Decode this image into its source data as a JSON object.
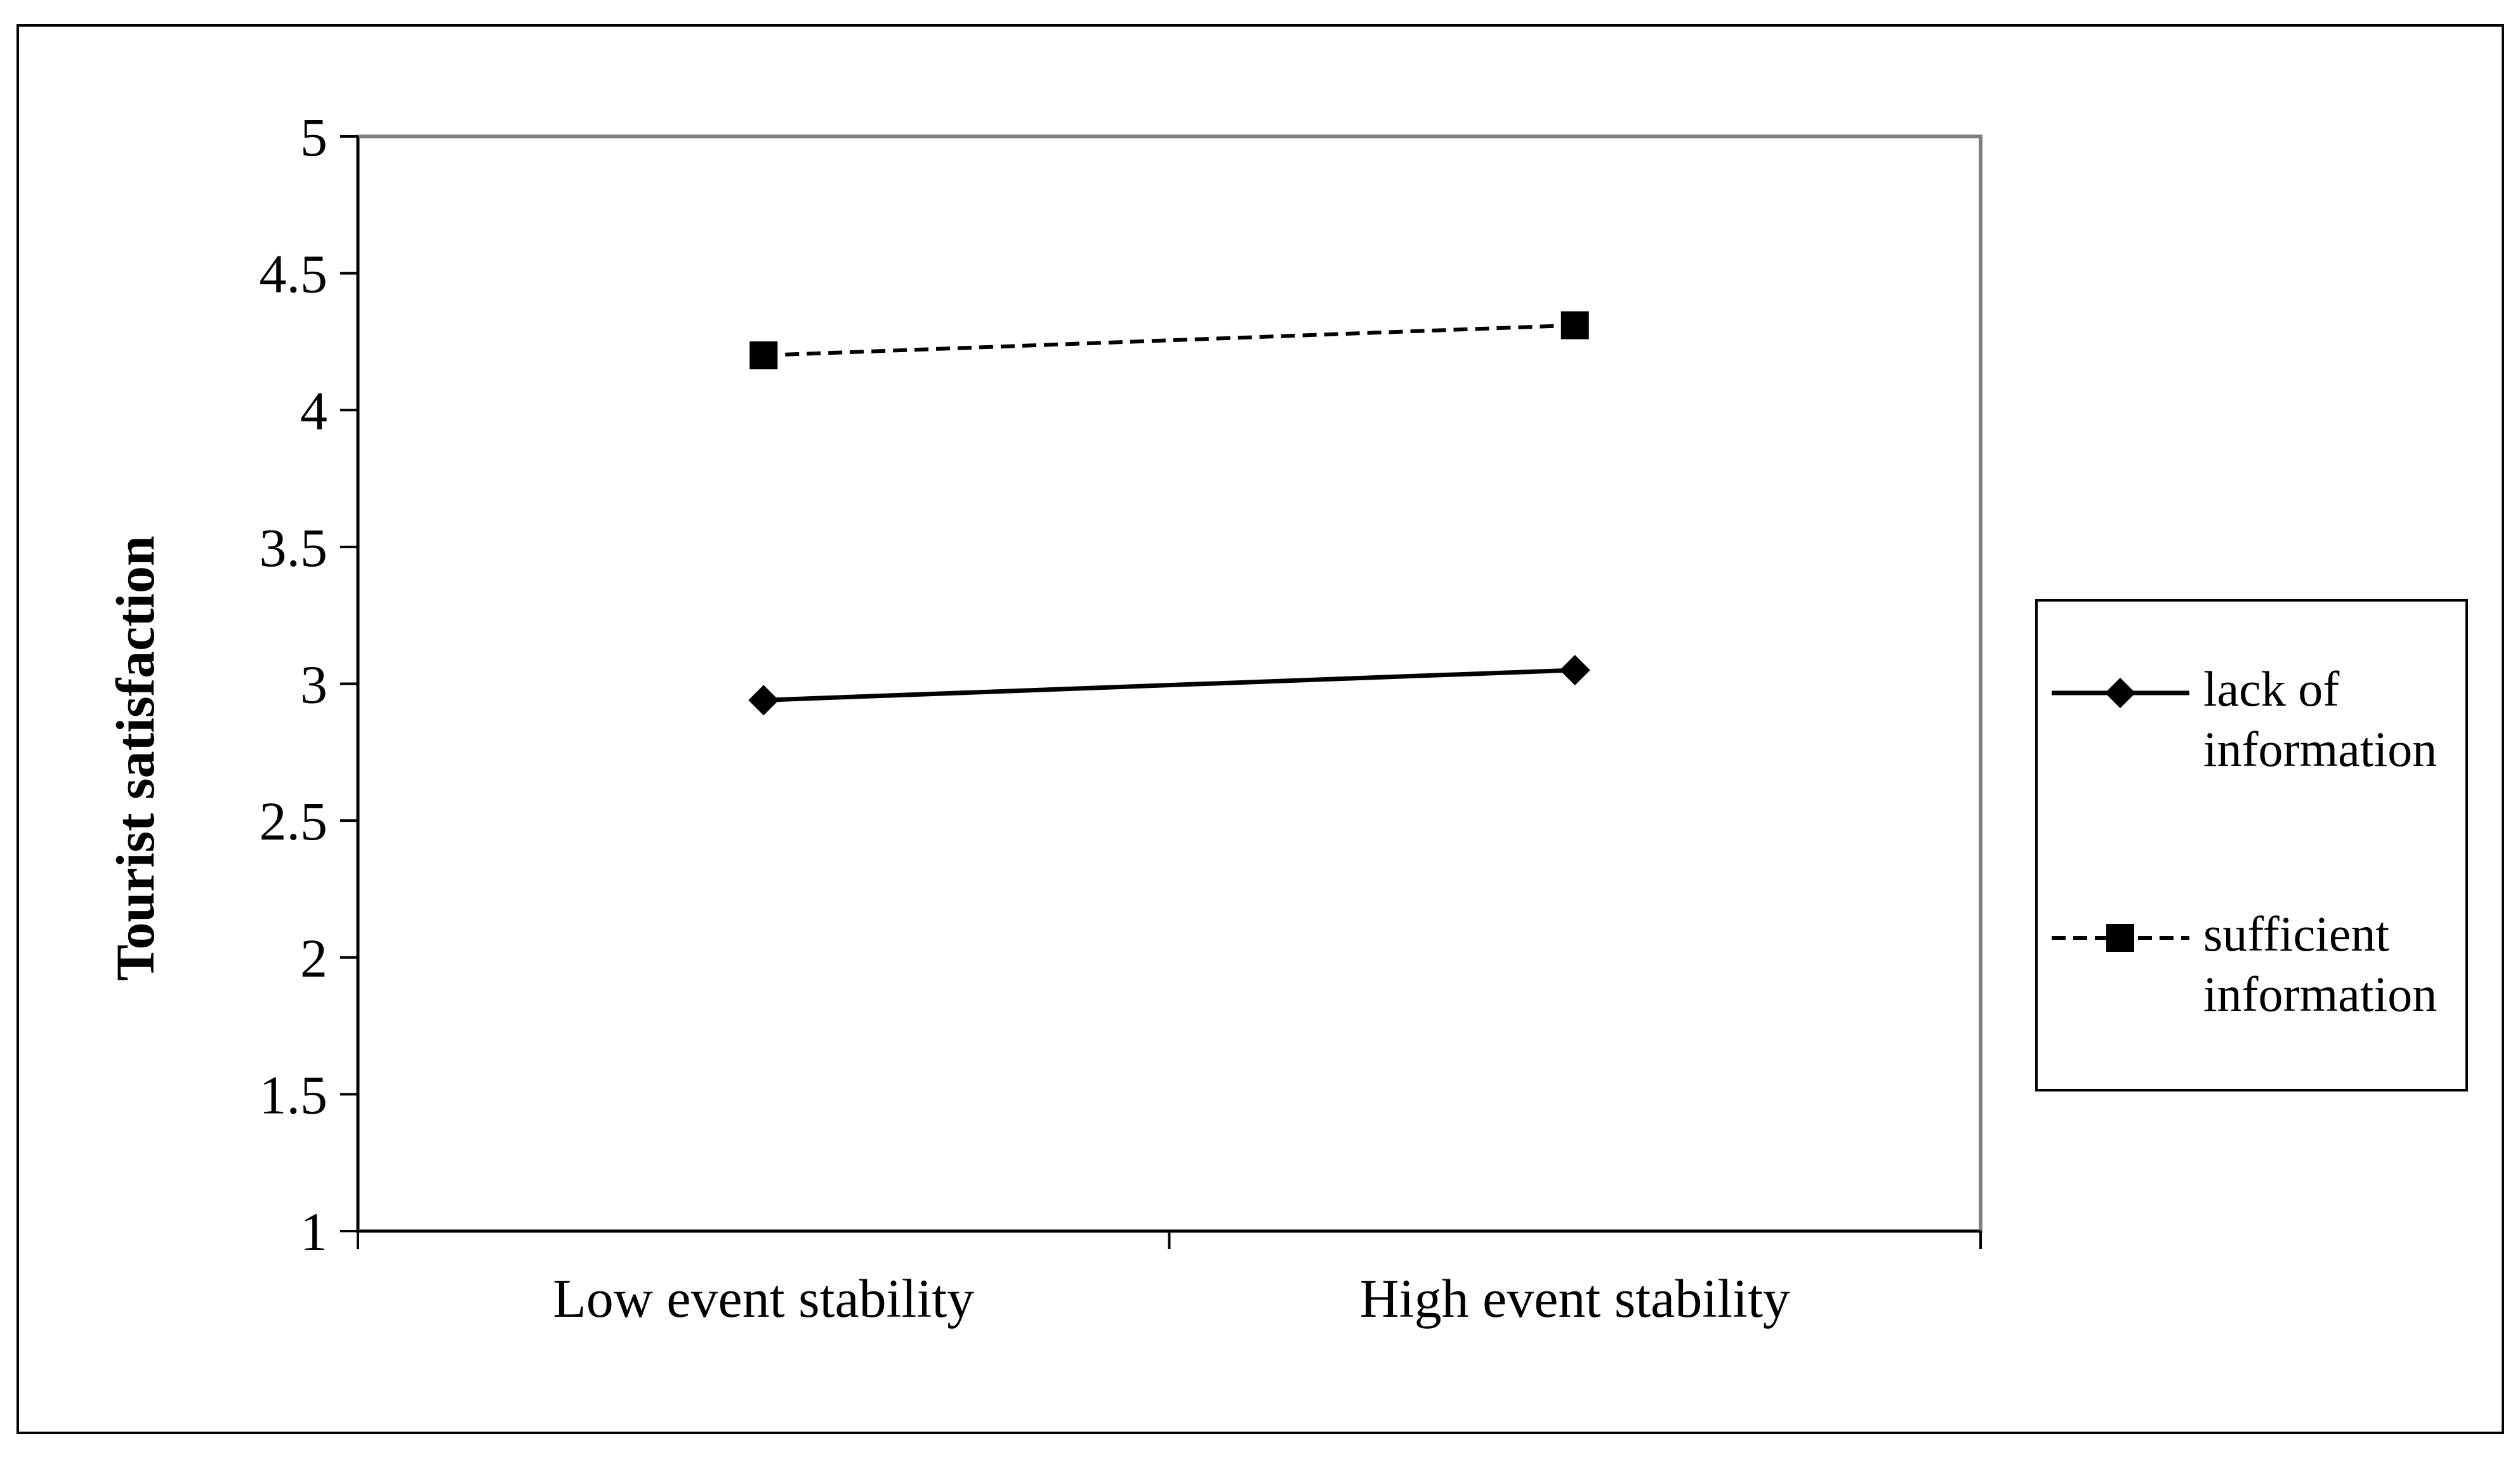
{
  "chart_data": {
    "type": "line",
    "title": "",
    "xlabel": "",
    "ylabel": "Tourist satisfaction",
    "categories": [
      "Low event stability",
      "High event stability"
    ],
    "ylim": [
      1,
      5
    ],
    "yticks": [
      "1",
      "1.5",
      "2",
      "2.5",
      "3",
      "3.5",
      "4",
      "4.5",
      "5"
    ],
    "grid": false,
    "legend_position": "right",
    "series": [
      {
        "name": "lack of information",
        "legend_lines": [
          "lack of",
          "information"
        ],
        "values": [
          2.94,
          3.05
        ],
        "line_style": "solid",
        "marker": "diamond",
        "color": "#000000"
      },
      {
        "name": "sufficient information",
        "legend_lines": [
          "sufficient",
          "information"
        ],
        "values": [
          4.2,
          4.31
        ],
        "line_style": "dashed",
        "marker": "square",
        "color": "#000000"
      }
    ]
  }
}
